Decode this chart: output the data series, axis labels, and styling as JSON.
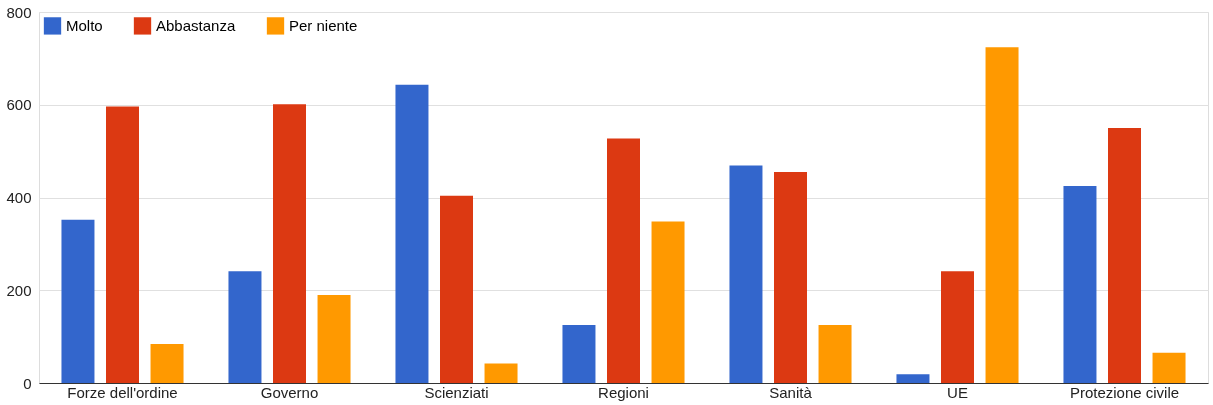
{
  "chart_data": {
    "type": "bar",
    "categories": [
      "Forze dell'ordine",
      "Governo",
      "Scienziati",
      "Regioni",
      "Sanità",
      "UE",
      "Protezione civile"
    ],
    "series": [
      {
        "name": "Molto",
        "color": "#3366cc",
        "values": [
          352,
          241,
          643,
          125,
          469,
          19,
          425
        ]
      },
      {
        "name": "Abbastanza",
        "color": "#dc3912",
        "values": [
          596,
          601,
          404,
          527,
          455,
          241,
          550
        ]
      },
      {
        "name": "Per niente",
        "color": "#ff9900",
        "values": [
          84,
          190,
          42,
          348,
          125,
          724,
          65
        ]
      }
    ],
    "ylim": [
      0,
      800
    ],
    "yticks": [
      0,
      200,
      400,
      600,
      800
    ],
    "grid": "y",
    "legend": "top left"
  }
}
